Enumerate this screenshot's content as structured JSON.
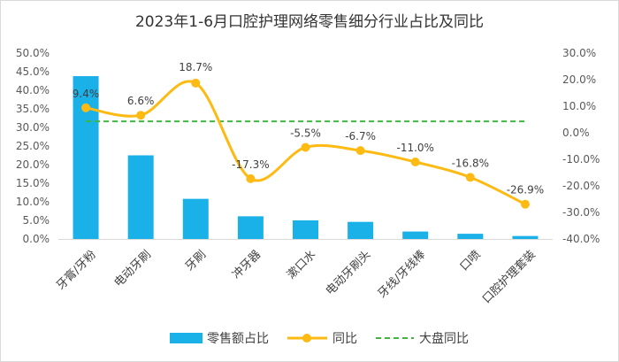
{
  "chart_data": {
    "type": "bar",
    "title": "2023年1-6月口腔护理网络零售细分行业占比及同比",
    "categories": [
      "牙膏/牙粉",
      "电动牙刷",
      "牙刷",
      "冲牙器",
      "漱口水",
      "电动牙刷头",
      "牙线/牙线棒",
      "口喷",
      "口腔护理套装"
    ],
    "series": [
      {
        "name": "零售额占比",
        "type": "bar",
        "axis": "left",
        "color": "#1AB0E8",
        "values": [
          43.8,
          22.5,
          10.8,
          6.1,
          5.0,
          4.6,
          2.0,
          1.4,
          0.8
        ]
      },
      {
        "name": "同比",
        "type": "line",
        "axis": "right",
        "color": "#FDBA13",
        "values": [
          9.4,
          6.6,
          18.7,
          -17.3,
          -5.5,
          -6.7,
          -11.0,
          -16.8,
          -26.9
        ],
        "labels": [
          "9.4%",
          "6.6%",
          "18.7%",
          "-17.3%",
          "-5.5%",
          "-6.7%",
          "-11.0%",
          "-16.8%",
          "-26.9%"
        ]
      },
      {
        "name": "大盘同比",
        "type": "line",
        "axis": "right",
        "color": "#3CB93C",
        "dashed": true,
        "value": 4.3
      }
    ],
    "y_left": {
      "min": 0,
      "max": 50,
      "step": 5,
      "tick_labels": [
        "0.0%",
        "5.0%",
        "10.0%",
        "15.0%",
        "20.0%",
        "25.0%",
        "30.0%",
        "35.0%",
        "40.0%",
        "45.0%",
        "50.0%"
      ]
    },
    "y_right": {
      "min": -40,
      "max": 30,
      "step": 10,
      "tick_labels": [
        "-40.0%",
        "-30.0%",
        "-20.0%",
        "-10.0%",
        "0.0%",
        "10.0%",
        "20.0%",
        "30.0%"
      ]
    },
    "grid": false,
    "legend_position": "bottom"
  }
}
